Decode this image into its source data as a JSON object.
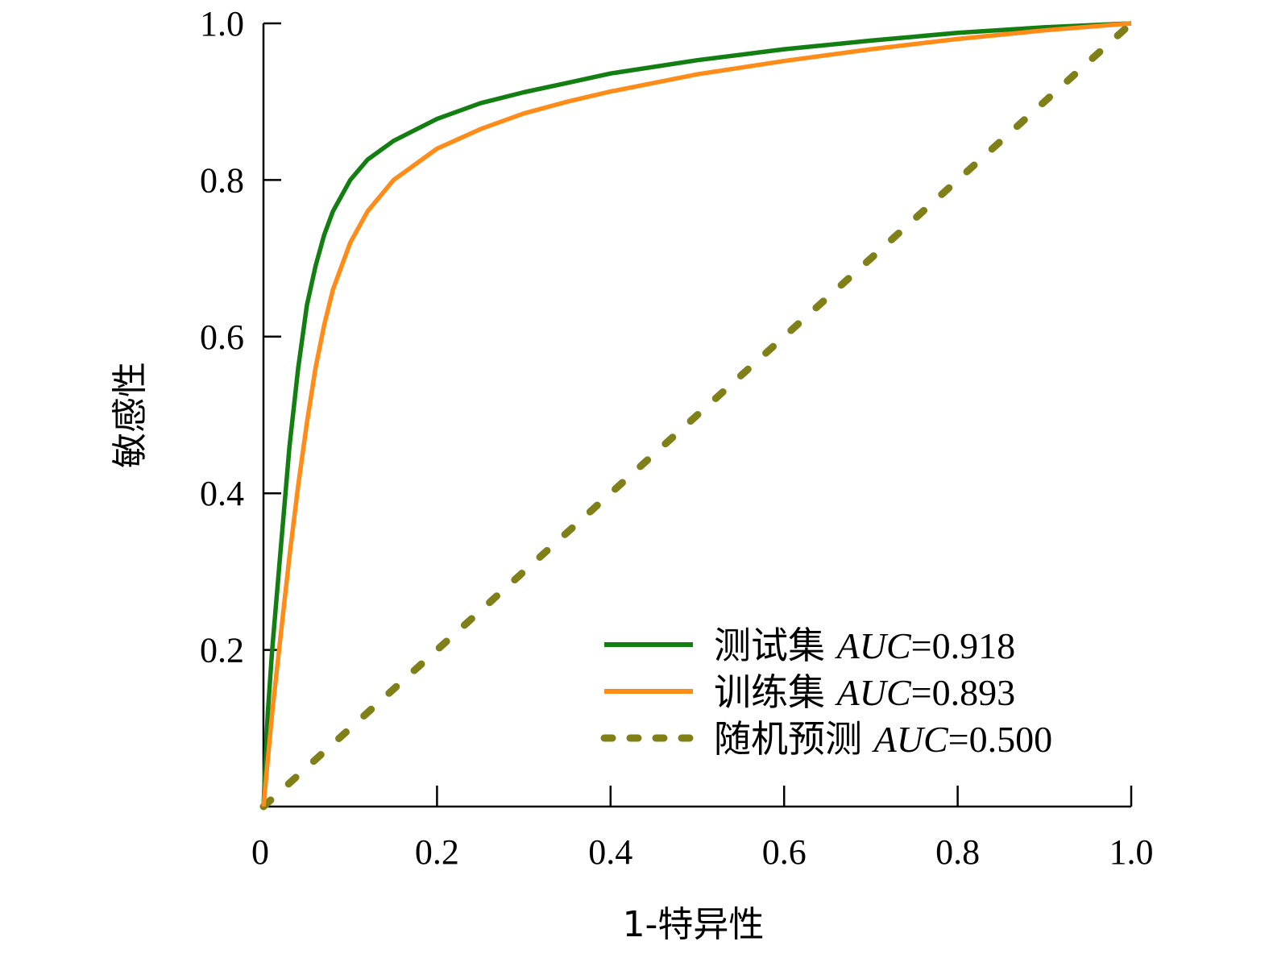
{
  "chart_data": {
    "type": "line",
    "xlabel": "1-特异性",
    "ylabel": "敏感性",
    "xlim": [
      0,
      1
    ],
    "ylim": [
      0,
      1
    ],
    "x_ticks": [
      {
        "value": 0,
        "label": "0"
      },
      {
        "value": 0.2,
        "label": "0.2"
      },
      {
        "value": 0.4,
        "label": "0.4"
      },
      {
        "value": 0.6,
        "label": "0.6"
      },
      {
        "value": 0.8,
        "label": "0.8"
      },
      {
        "value": 1.0,
        "label": "1.0"
      }
    ],
    "y_ticks": [
      {
        "value": 0.2,
        "label": "0.2"
      },
      {
        "value": 0.4,
        "label": "0.4"
      },
      {
        "value": 0.6,
        "label": "0.6"
      },
      {
        "value": 0.8,
        "label": "0.8"
      },
      {
        "value": 1.0,
        "label": "1.0"
      }
    ],
    "legend_position": "bottom-right",
    "grid": false,
    "series": [
      {
        "name": "测试集",
        "auc_label": "AUC",
        "auc_value": "=0.918",
        "color": "#137f13",
        "dash": "solid",
        "points": [
          [
            0,
            0
          ],
          [
            0.005,
            0.12
          ],
          [
            0.01,
            0.2
          ],
          [
            0.02,
            0.33
          ],
          [
            0.03,
            0.46
          ],
          [
            0.04,
            0.56
          ],
          [
            0.05,
            0.64
          ],
          [
            0.06,
            0.69
          ],
          [
            0.07,
            0.73
          ],
          [
            0.08,
            0.76
          ],
          [
            0.1,
            0.8
          ],
          [
            0.12,
            0.826
          ],
          [
            0.15,
            0.85
          ],
          [
            0.2,
            0.878
          ],
          [
            0.25,
            0.898
          ],
          [
            0.3,
            0.912
          ],
          [
            0.35,
            0.924
          ],
          [
            0.4,
            0.936
          ],
          [
            0.5,
            0.953
          ],
          [
            0.6,
            0.967
          ],
          [
            0.7,
            0.978
          ],
          [
            0.8,
            0.988
          ],
          [
            0.9,
            0.995
          ],
          [
            1,
            1
          ]
        ]
      },
      {
        "name": "训练集",
        "auc_label": "AUC",
        "auc_value": "=0.893",
        "color": "#ff8c19",
        "dash": "solid",
        "points": [
          [
            0,
            0
          ],
          [
            0.005,
            0.06
          ],
          [
            0.01,
            0.12
          ],
          [
            0.02,
            0.22
          ],
          [
            0.03,
            0.32
          ],
          [
            0.04,
            0.41
          ],
          [
            0.05,
            0.49
          ],
          [
            0.06,
            0.56
          ],
          [
            0.07,
            0.615
          ],
          [
            0.08,
            0.66
          ],
          [
            0.1,
            0.72
          ],
          [
            0.12,
            0.76
          ],
          [
            0.15,
            0.8
          ],
          [
            0.2,
            0.84
          ],
          [
            0.25,
            0.865
          ],
          [
            0.3,
            0.885
          ],
          [
            0.35,
            0.9
          ],
          [
            0.4,
            0.913
          ],
          [
            0.5,
            0.935
          ],
          [
            0.6,
            0.952
          ],
          [
            0.7,
            0.967
          ],
          [
            0.8,
            0.98
          ],
          [
            0.9,
            0.991
          ],
          [
            1,
            1
          ]
        ]
      },
      {
        "name": "随机预测",
        "auc_label": "AUC",
        "auc_value": "=0.500",
        "color": "#808019",
        "dash": "dotted",
        "points": [
          [
            0,
            0
          ],
          [
            1,
            1
          ]
        ]
      }
    ]
  }
}
